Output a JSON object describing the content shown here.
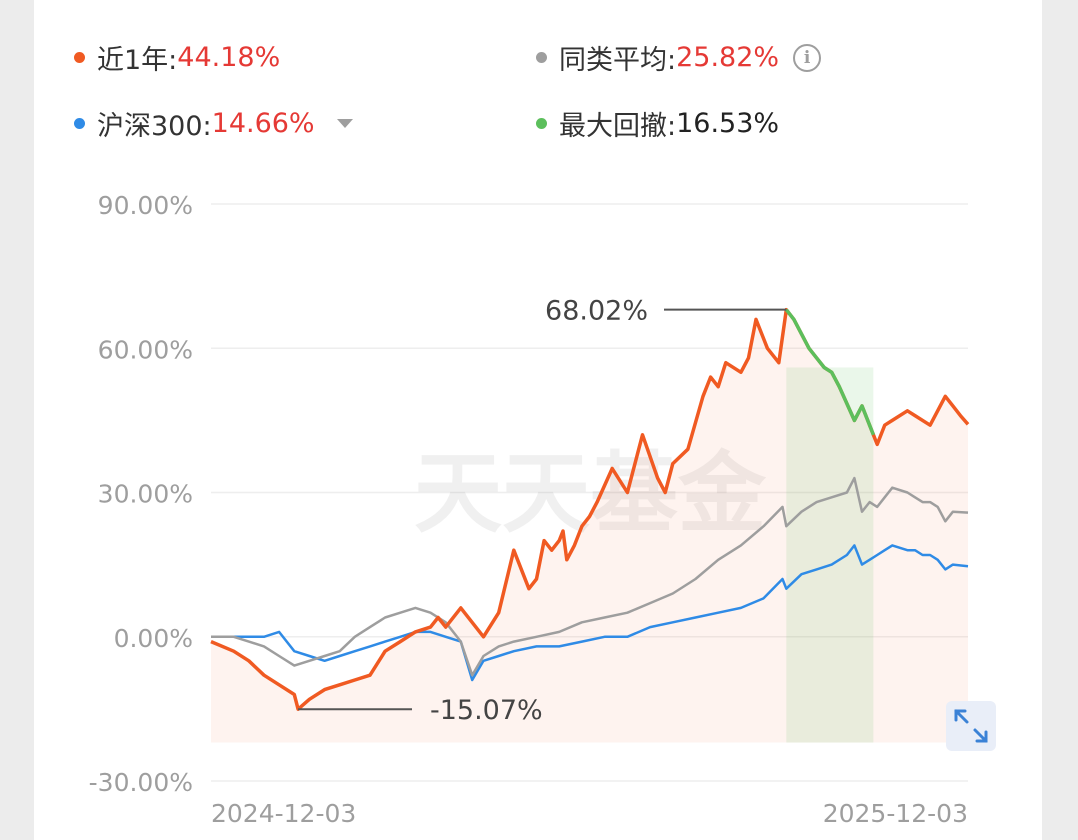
{
  "legend": {
    "fund": {
      "label": "近1年:",
      "value": "44.18%",
      "color": "#f05a22"
    },
    "peer": {
      "label": "同类平均:",
      "value": "25.82%",
      "color": "#9e9e9e",
      "icon": "info-icon"
    },
    "index": {
      "label": "沪深300:",
      "value": "14.66%",
      "color": "#2f8be6",
      "icon": "caret-down-icon"
    },
    "drawdown": {
      "label": "最大回撤:",
      "value": "16.53%",
      "color": "#5cbf5c"
    }
  },
  "watermark": "天天基金",
  "chart_data": {
    "type": "line",
    "x_range": [
      "2024-12-03",
      "2025-12-03"
    ],
    "xtick_labels": [
      "2024-12-03",
      "2025-12-03"
    ],
    "ylim": [
      -30,
      90
    ],
    "ytick_values": [
      90,
      60,
      30,
      0,
      -30
    ],
    "ytick_labels": [
      "90.00%",
      "60.00%",
      "30.00%",
      "0.00%",
      "-30.00%"
    ],
    "grid": true,
    "series": [
      {
        "name": "近1年",
        "color": "#f05a22",
        "x": [
          0,
          0.03,
          0.05,
          0.07,
          0.09,
          0.11,
          0.115,
          0.13,
          0.15,
          0.17,
          0.19,
          0.21,
          0.23,
          0.25,
          0.27,
          0.29,
          0.3,
          0.31,
          0.33,
          0.36,
          0.38,
          0.4,
          0.42,
          0.43,
          0.44,
          0.45,
          0.46,
          0.465,
          0.47,
          0.48,
          0.49,
          0.5,
          0.51,
          0.53,
          0.55,
          0.57,
          0.59,
          0.6,
          0.61,
          0.63,
          0.65,
          0.66,
          0.67,
          0.68,
          0.7,
          0.71,
          0.72,
          0.735,
          0.75,
          0.76,
          0.77,
          0.79,
          0.8,
          0.81,
          0.82,
          0.83,
          0.85,
          0.86,
          0.87,
          0.875,
          0.88,
          0.89,
          0.9,
          0.92,
          0.93,
          0.95,
          0.97,
          0.98,
          0.99,
          1.0
        ],
        "y": [
          -1,
          -3,
          -5,
          -8,
          -10,
          -12,
          -15.07,
          -13,
          -11,
          -10,
          -9,
          -8,
          -3,
          -1,
          1,
          2,
          4,
          2,
          6,
          0,
          5,
          18,
          10,
          12,
          20,
          18,
          20,
          22,
          16,
          19,
          23,
          25,
          28,
          35,
          30,
          42,
          33,
          30,
          36,
          39,
          50,
          54,
          52,
          57,
          55,
          58,
          66,
          60,
          57,
          68.02,
          66,
          60,
          58,
          56,
          55,
          52,
          45,
          48,
          44,
          42,
          40,
          44,
          45,
          47,
          46,
          44,
          50,
          48,
          46,
          44.18
        ]
      },
      {
        "name": "同类平均",
        "color": "#9e9e9e",
        "x": [
          0,
          0.03,
          0.05,
          0.07,
          0.09,
          0.11,
          0.13,
          0.15,
          0.17,
          0.19,
          0.21,
          0.23,
          0.25,
          0.27,
          0.29,
          0.31,
          0.33,
          0.345,
          0.36,
          0.38,
          0.4,
          0.43,
          0.46,
          0.49,
          0.52,
          0.55,
          0.58,
          0.61,
          0.64,
          0.67,
          0.7,
          0.73,
          0.755,
          0.76,
          0.78,
          0.8,
          0.82,
          0.84,
          0.85,
          0.86,
          0.87,
          0.88,
          0.89,
          0.9,
          0.92,
          0.93,
          0.94,
          0.95,
          0.96,
          0.97,
          0.98,
          1.0
        ],
        "y": [
          0,
          0,
          -1,
          -2,
          -4,
          -6,
          -5,
          -4,
          -3,
          0,
          2,
          4,
          5,
          6,
          5,
          3,
          -1,
          -8,
          -4,
          -2,
          -1,
          0,
          1,
          3,
          4,
          5,
          7,
          9,
          12,
          16,
          19,
          23,
          27,
          23,
          26,
          28,
          29,
          30,
          33,
          26,
          28,
          27,
          29,
          31,
          30,
          29,
          28,
          28,
          27,
          24,
          26,
          25.82
        ]
      },
      {
        "name": "沪深300",
        "color": "#2f8be6",
        "x": [
          0,
          0.03,
          0.05,
          0.07,
          0.09,
          0.11,
          0.13,
          0.15,
          0.17,
          0.19,
          0.21,
          0.23,
          0.25,
          0.27,
          0.29,
          0.31,
          0.33,
          0.345,
          0.36,
          0.38,
          0.4,
          0.43,
          0.46,
          0.49,
          0.52,
          0.55,
          0.58,
          0.61,
          0.64,
          0.67,
          0.7,
          0.73,
          0.755,
          0.76,
          0.78,
          0.8,
          0.82,
          0.84,
          0.85,
          0.86,
          0.87,
          0.88,
          0.89,
          0.9,
          0.92,
          0.93,
          0.94,
          0.95,
          0.96,
          0.97,
          0.98,
          1.0
        ],
        "y": [
          0,
          0,
          0,
          0,
          1,
          -3,
          -4,
          -5,
          -4,
          -3,
          -2,
          -1,
          0,
          1,
          1,
          0,
          -1,
          -9,
          -5,
          -4,
          -3,
          -2,
          -2,
          -1,
          0,
          0,
          2,
          3,
          4,
          5,
          6,
          8,
          12,
          10,
          13,
          14,
          15,
          17,
          19,
          15,
          16,
          17,
          18,
          19,
          18,
          18,
          17,
          17,
          16,
          14,
          15,
          14.66
        ]
      }
    ],
    "drawdown_range": {
      "start": 0.76,
      "end": 0.875,
      "color": "#5cbf5c"
    },
    "annotations": [
      {
        "text": "68.02%",
        "x": 0.76,
        "y": 68.02
      },
      {
        "text": "-15.07%",
        "x": 0.115,
        "y": -15.07
      }
    ]
  }
}
